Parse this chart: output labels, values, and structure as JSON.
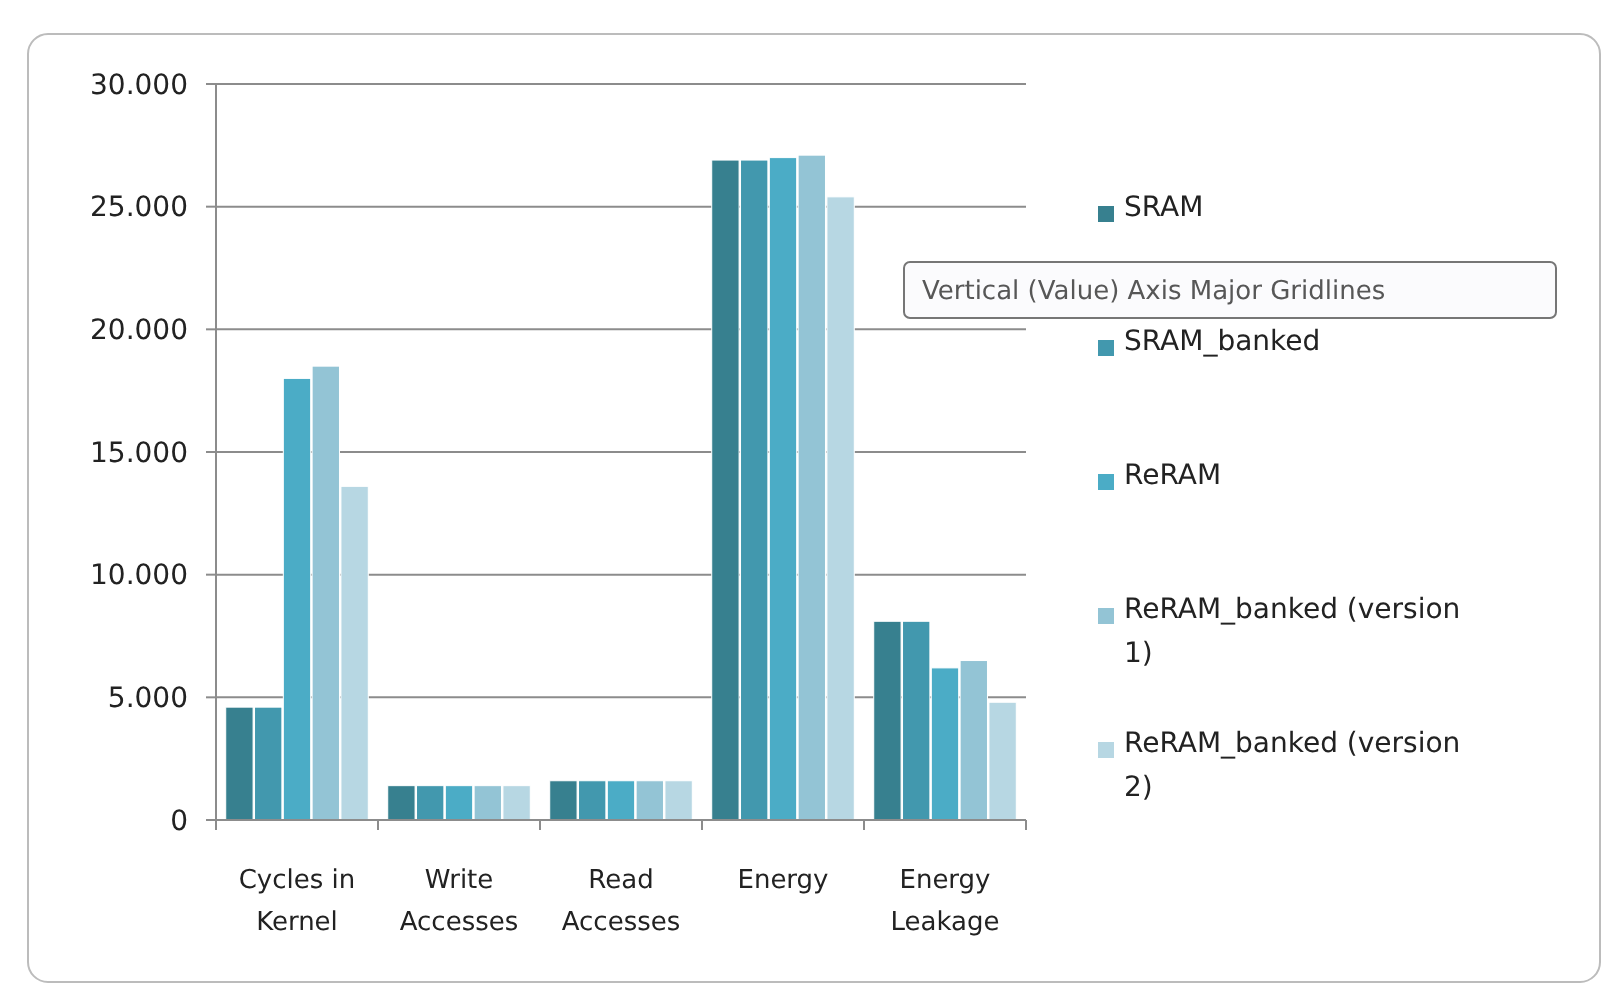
{
  "chart_data": {
    "type": "bar",
    "categories": [
      "Cycles in Kernel",
      "Write Accesses",
      "Read Accesses",
      "Energy",
      "Energy Leakage"
    ],
    "series": [
      {
        "name": "SRAM",
        "color": "#37808f",
        "values": [
          4600,
          1400,
          1600,
          26900,
          8100
        ]
      },
      {
        "name": "SRAM_banked",
        "color": "#4298ae",
        "values": [
          4600,
          1400,
          1600,
          26900,
          8100
        ]
      },
      {
        "name": "ReRAM",
        "color": "#4bacc6",
        "values": [
          18000,
          1400,
          1600,
          27000,
          6200
        ]
      },
      {
        "name": "ReRAM_banked (version 1)",
        "color": "#93c4d5",
        "values": [
          18500,
          1400,
          1600,
          27100,
          6500
        ]
      },
      {
        "name": "ReRAM_banked (version 2)",
        "color": "#b7d7e3",
        "values": [
          13600,
          1400,
          1600,
          25400,
          4800
        ]
      }
    ],
    "ylim": [
      0,
      30000
    ],
    "yticks": [
      0,
      {
        "value": 5000,
        "label": "5.000"
      },
      {
        "value": 10000,
        "label": "10.000"
      },
      {
        "value": 15000,
        "label": "15.000"
      },
      {
        "value": 20000,
        "label": "20.000"
      },
      {
        "value": 25000,
        "label": "25.000"
      },
      {
        "value": 30000,
        "label": "30.000"
      }
    ],
    "grid": "y",
    "legend": "right",
    "annotations": [
      "Vertical (Value) Axis Major Gridlines"
    ]
  }
}
